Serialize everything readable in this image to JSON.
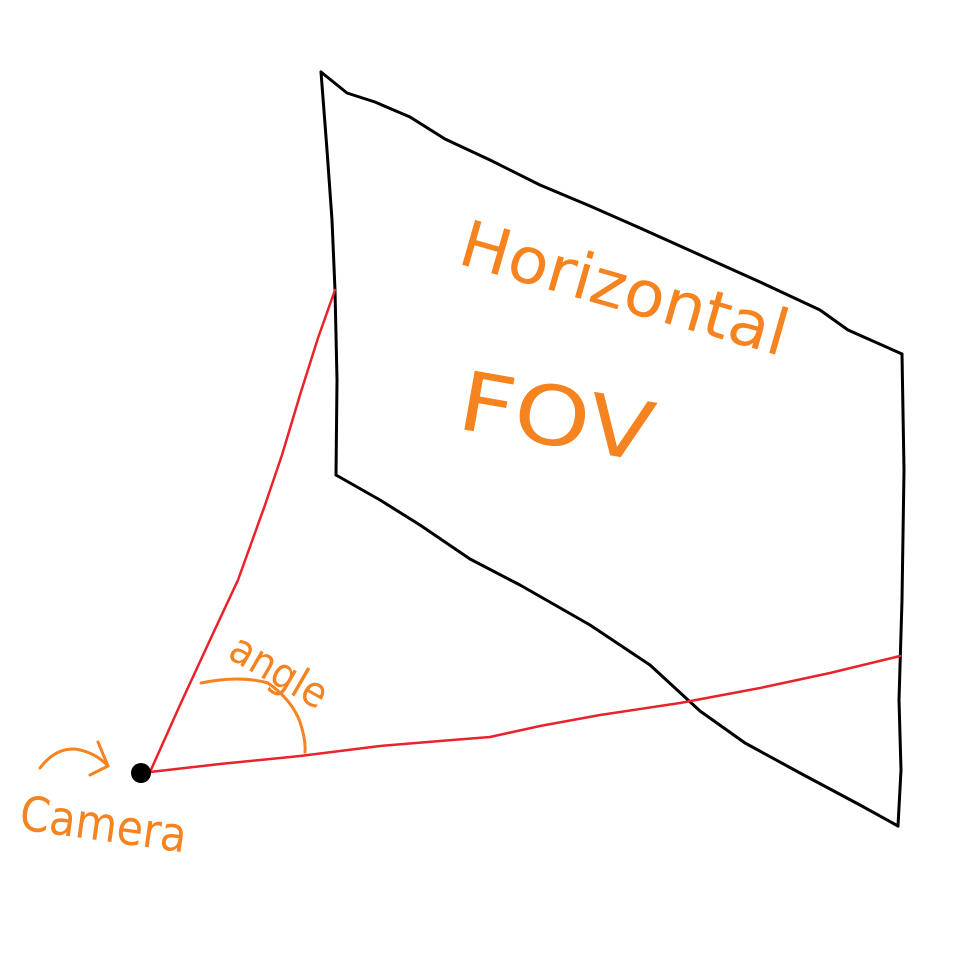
{
  "labels": {
    "line1": "Horizontal",
    "line2": "FOV",
    "angle": "angle",
    "camera": "Camera"
  },
  "colors": {
    "plane": "#000000",
    "ray": "#e8232b",
    "annotation": "#f5831f",
    "camera": "#000000",
    "background": "#ffffff"
  }
}
